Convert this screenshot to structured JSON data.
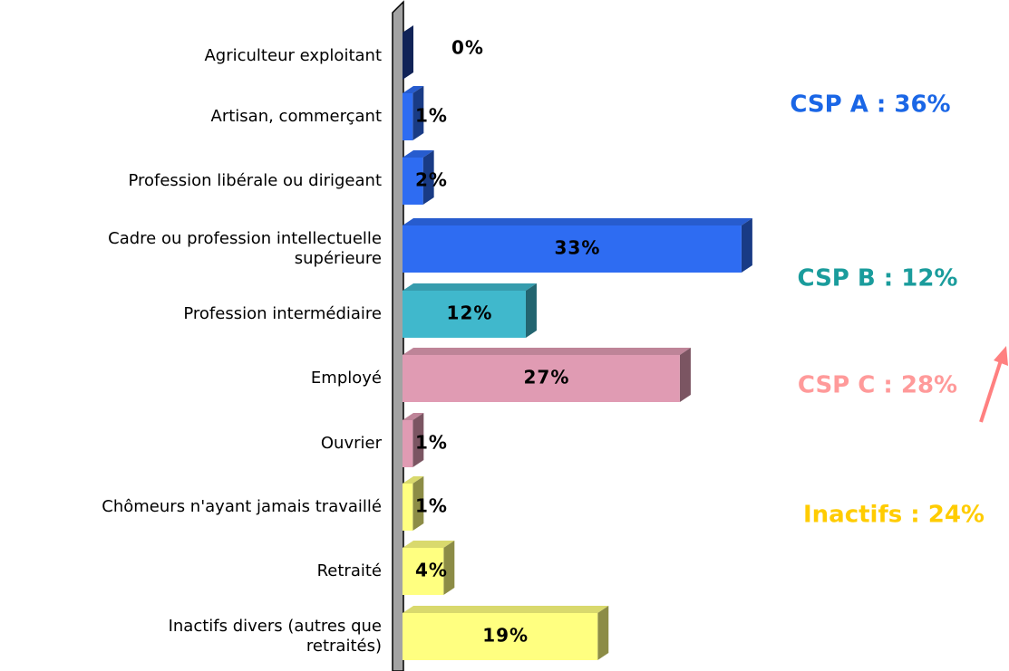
{
  "chart_data": {
    "type": "bar",
    "orientation": "horizontal",
    "categories": [
      "Agriculteur exploitant",
      "Artisan, commerçant",
      "Profession libérale ou dirigeant",
      "Cadre ou profession intellectuelle\nsupérieure",
      "Profession intermédiaire",
      "Employé",
      "Ouvrier",
      "Chômeurs n'ayant jamais travaillé",
      "Retraité",
      "Inactifs divers (autres que\nretraités)"
    ],
    "values": [
      0,
      1,
      2,
      33,
      12,
      27,
      1,
      1,
      4,
      19
    ],
    "value_labels": [
      "0%",
      "1%",
      "2%",
      "33%",
      "12%",
      "27%",
      "1%",
      "1%",
      "4%",
      "19%"
    ],
    "colors": [
      "#1f3f9e",
      "#2e6cf2",
      "#2e6cf2",
      "#2e6cf2",
      "#40b8cc",
      "#e09bb3",
      "#e09bb3",
      "#ffff80",
      "#ffff80",
      "#ffff80"
    ],
    "annotations": [
      {
        "text": "CSP A : 36%",
        "color": "#1a66e6"
      },
      {
        "text": "CSP B : 12%",
        "color": "#1a9c9c"
      },
      {
        "text": "CSP C : 28%",
        "color": "#ff9a9a"
      },
      {
        "text": "Inactifs : 24%",
        "color": "#ffcc00"
      }
    ]
  }
}
